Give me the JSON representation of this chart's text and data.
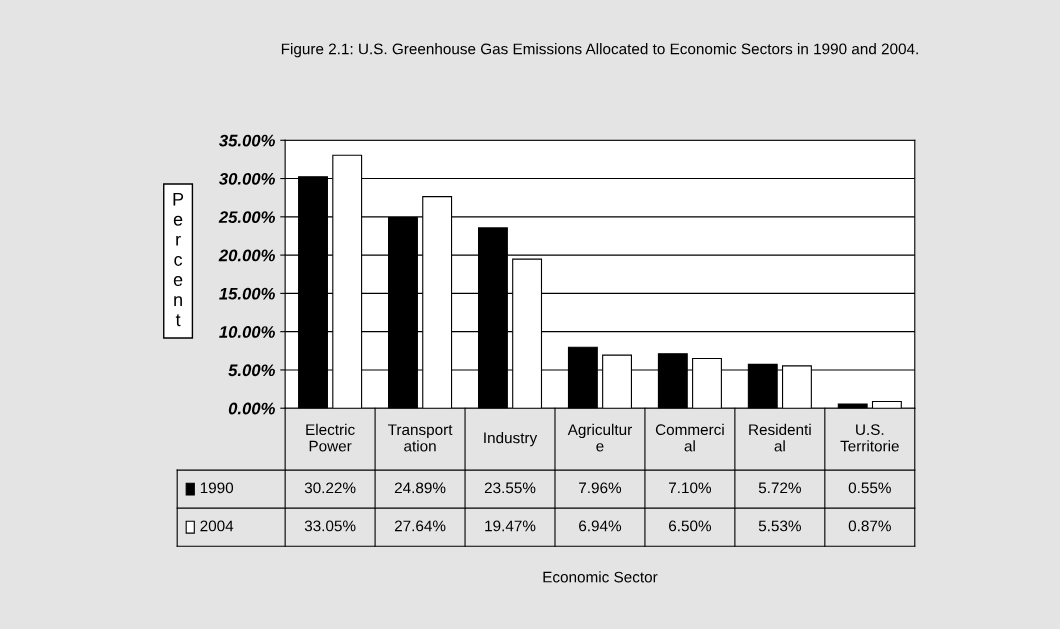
{
  "chart_data": {
    "type": "bar",
    "title": "Figure 2.1: U.S. Greenhouse Gas Emissions Allocated to Economic Sectors in 1990 and 2004.",
    "annotations": [
      "Economic Sector"
    ],
    "ylabel": "Percent",
    "categories": [
      "Electric\nPower",
      "Transport\nation",
      "Industry",
      "Agricultur\ne",
      "Commerci\nal",
      "Residenti\nal",
      "U.S.\nTerritorie"
    ],
    "series": [
      {
        "name": "1990",
        "color": "#000000",
        "values": [
          30.22,
          24.89,
          23.55,
          7.96,
          7.1,
          5.72,
          0.55
        ],
        "value_labels": [
          "30.22%",
          "24.89%",
          "23.55%",
          "7.96%",
          "7.10%",
          "5.72%",
          "0.55%"
        ]
      },
      {
        "name": "2004",
        "color": "#ffffff",
        "values": [
          33.05,
          27.64,
          19.47,
          6.94,
          6.5,
          5.53,
          0.87
        ],
        "value_labels": [
          "33.05%",
          "27.64%",
          "19.47%",
          "6.94%",
          "6.50%",
          "5.53%",
          "0.87%"
        ]
      }
    ],
    "ylim": [
      0,
      35
    ],
    "yticks": [
      {
        "value": 0,
        "label": "0.00%"
      },
      {
        "value": 5,
        "label": "5.00%"
      },
      {
        "value": 10,
        "label": "10.00%"
      },
      {
        "value": 15,
        "label": "15.00%"
      },
      {
        "value": 20,
        "label": "20.00%"
      },
      {
        "value": 25,
        "label": "25.00%"
      },
      {
        "value": 30,
        "label": "30.00%"
      },
      {
        "value": 35,
        "label": "35.00%"
      }
    ],
    "grid": "y",
    "legend": "bottom left"
  }
}
